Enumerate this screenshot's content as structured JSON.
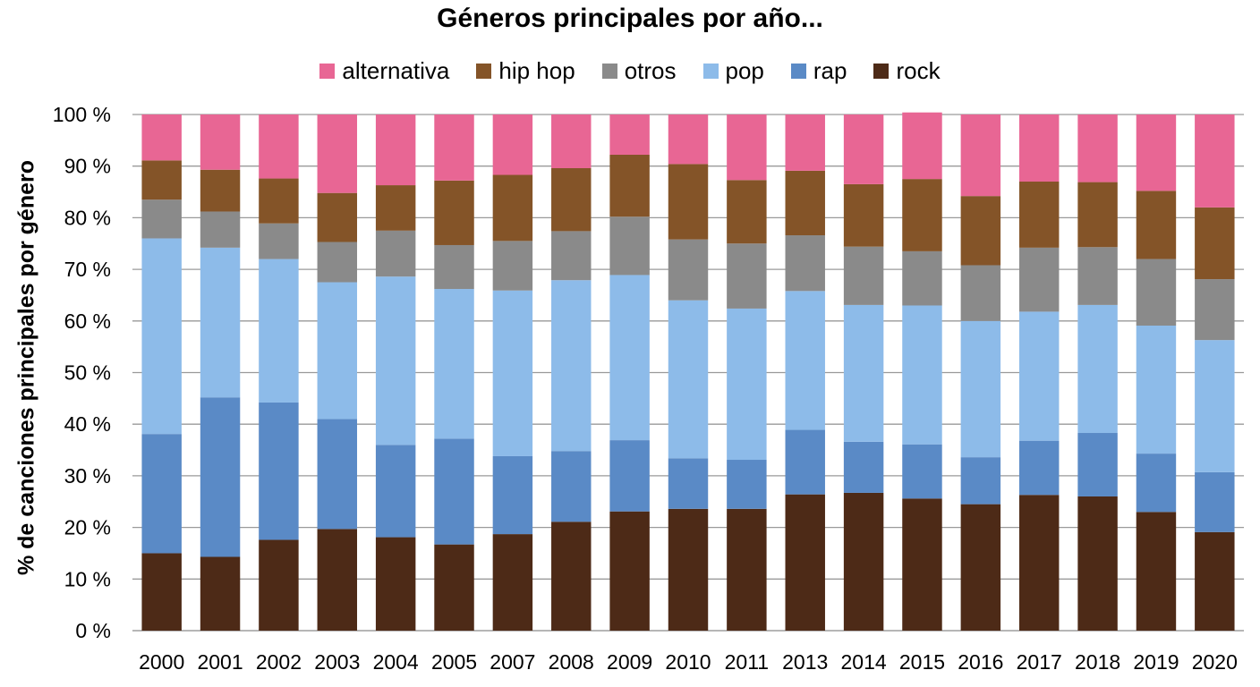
{
  "chart_data": {
    "type": "bar",
    "stacked": true,
    "title": "Géneros principales por año...",
    "ylabel": "% de canciones principales por género",
    "xlabel": "",
    "ylim": [
      0,
      100
    ],
    "y_ticks": [
      "0 %",
      "10 %",
      "20 %",
      "30 %",
      "40 %",
      "50 %",
      "60 %",
      "70 %",
      "80 %",
      "90 %",
      "100 %"
    ],
    "grid": true,
    "legend_position": "top",
    "categories": [
      "2000",
      "2001",
      "2002",
      "2003",
      "2004",
      "2005",
      "2007",
      "2008",
      "2009",
      "2010",
      "2011",
      "2013",
      "2014",
      "2015",
      "2016",
      "2017",
      "2018",
      "2019",
      "2020"
    ],
    "series": [
      {
        "name": "rock",
        "color": "#4d2a17",
        "values": [
          15,
          14.3,
          17.6,
          19.7,
          18.1,
          16.7,
          18.7,
          21.1,
          23.1,
          23.6,
          23.6,
          26.4,
          26.7,
          25.6,
          24.5,
          26.3,
          26.0,
          23.0,
          19.1
        ]
      },
      {
        "name": "rap",
        "color": "#5a8ac6",
        "values": [
          23.1,
          30.9,
          26.6,
          21.3,
          17.9,
          20.5,
          15.1,
          13.7,
          13.8,
          9.8,
          9.5,
          12.5,
          9.9,
          10.5,
          9.1,
          10.5,
          12.3,
          11.3,
          11.6
        ]
      },
      {
        "name": "pop",
        "color": "#8dbbe9",
        "values": [
          37.9,
          29.0,
          27.8,
          26.5,
          32.6,
          29.0,
          32.1,
          33.1,
          32.0,
          30.6,
          29.3,
          26.9,
          26.5,
          26.9,
          26.4,
          25.0,
          24.8,
          24.8,
          25.6
        ]
      },
      {
        "name": "otros",
        "color": "#8a8a8a",
        "values": [
          7.5,
          7.0,
          6.9,
          7.8,
          8.9,
          8.5,
          9.6,
          9.5,
          11.3,
          11.8,
          12.6,
          10.8,
          11.3,
          10.5,
          10.8,
          12.4,
          11.2,
          12.9,
          11.8
        ]
      },
      {
        "name": "hip hop",
        "color": "#845428",
        "values": [
          7.6,
          8.1,
          8.7,
          9.5,
          8.8,
          12.5,
          12.8,
          12.2,
          12.0,
          14.6,
          12.3,
          12.5,
          12.1,
          14.0,
          13.4,
          12.8,
          12.6,
          13.2,
          13.9
        ]
      },
      {
        "name": "alternativa",
        "color": "#e86694",
        "values": [
          8.9,
          10.7,
          12.4,
          15.2,
          13.7,
          12.8,
          11.7,
          10.4,
          7.8,
          9.6,
          12.7,
          10.9,
          13.5,
          12.9,
          15.8,
          13.0,
          13.1,
          14.8,
          18.0
        ]
      }
    ],
    "legend_order": [
      "alternativa",
      "hip hop",
      "otros",
      "pop",
      "rap",
      "rock"
    ]
  }
}
